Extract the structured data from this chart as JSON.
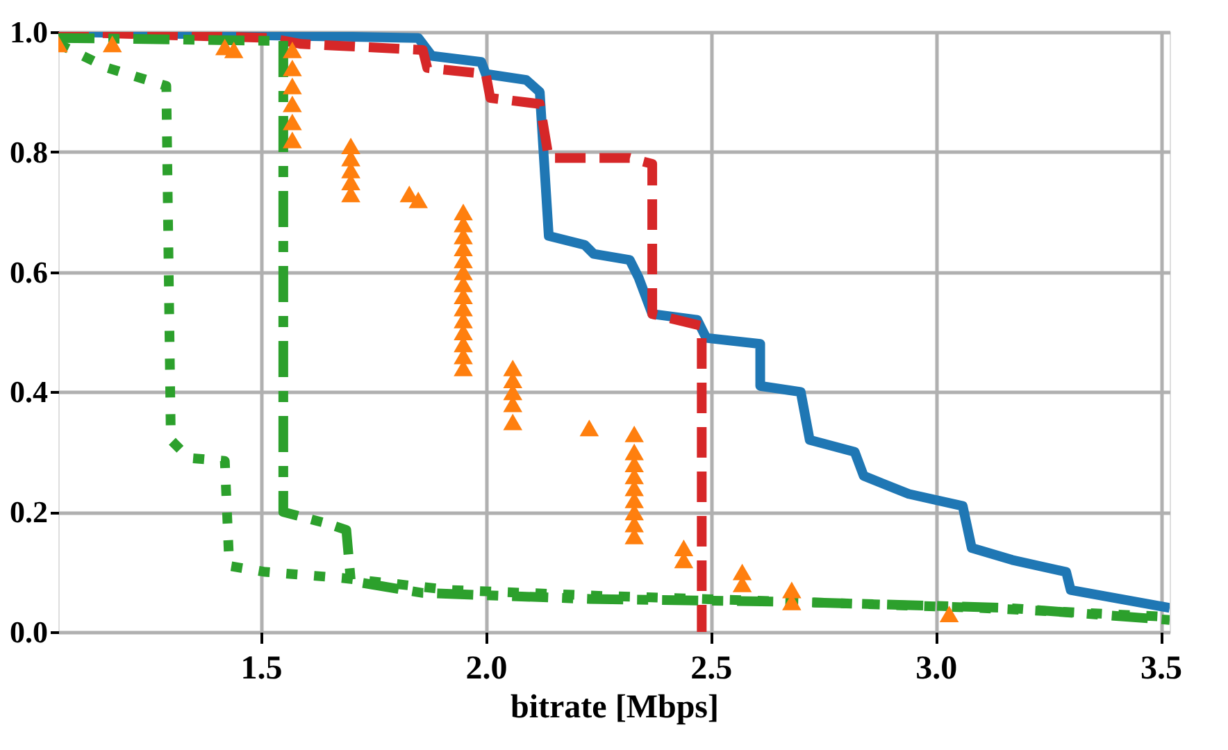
{
  "chart_data": {
    "type": "line",
    "xlabel": "bitrate [Mbps]",
    "xlim": [
      1.05,
      3.52
    ],
    "ylim": [
      0,
      1
    ],
    "xticks": [
      {
        "value": 1.5,
        "label": "1.5"
      },
      {
        "value": 2.0,
        "label": "2.0"
      },
      {
        "value": 2.5,
        "label": "2.5"
      },
      {
        "value": 3.0,
        "label": "3.0"
      },
      {
        "value": 3.5,
        "label": "3.5"
      }
    ],
    "yticks": [
      {
        "value": 0,
        "label": "0.0"
      },
      {
        "value": 0.2,
        "label": "0.2"
      },
      {
        "value": 0.4,
        "label": "0.4"
      },
      {
        "value": 0.6,
        "label": "0.6"
      },
      {
        "value": 0.8,
        "label": "0.8"
      },
      {
        "value": 1.0,
        "label": "1.0"
      }
    ],
    "grid": true,
    "series": [
      {
        "color": "#1f77b4",
        "line_style": "solid",
        "x": [
          1.05,
          1.85,
          1.88,
          1.99,
          2.0,
          2.09,
          2.12,
          2.14,
          2.22,
          2.24,
          2.32,
          2.34,
          2.37,
          2.47,
          2.49,
          2.61,
          2.61,
          2.7,
          2.72,
          2.82,
          2.84,
          2.94,
          3.06,
          3.08,
          3.17,
          3.29,
          3.3,
          3.52
        ],
        "values": [
          1.0,
          0.99,
          0.96,
          0.95,
          0.93,
          0.92,
          0.9,
          0.66,
          0.645,
          0.63,
          0.62,
          0.59,
          0.53,
          0.52,
          0.49,
          0.48,
          0.41,
          0.4,
          0.32,
          0.3,
          0.26,
          0.23,
          0.21,
          0.14,
          0.12,
          0.1,
          0.07,
          0.04
        ]
      },
      {
        "color": "#d62728",
        "line_style": "dashed",
        "x": [
          1.05,
          1.52,
          1.59,
          1.86,
          1.87,
          2.0,
          2.01,
          2.12,
          2.14,
          2.32,
          2.37,
          2.37,
          2.48,
          2.48
        ],
        "values": [
          1.0,
          0.99,
          0.98,
          0.97,
          0.94,
          0.93,
          0.89,
          0.88,
          0.79,
          0.79,
          0.78,
          0.53,
          0.51,
          0.0
        ]
      },
      {
        "color": "#2ca02c",
        "line_style": "dotted",
        "x": [
          1.05,
          1.16,
          1.29,
          1.3,
          1.34,
          1.42,
          1.43,
          1.51,
          1.68,
          1.92,
          2.26,
          2.7,
          3.1,
          3.52
        ],
        "values": [
          0.98,
          0.94,
          0.91,
          0.32,
          0.29,
          0.285,
          0.11,
          0.1,
          0.09,
          0.07,
          0.06,
          0.05,
          0.04,
          0.025
        ]
      },
      {
        "color": "#2ca02c",
        "line_style": "dashdot",
        "x": [
          1.05,
          1.55,
          1.55,
          1.65,
          1.69,
          1.7,
          1.86,
          2.23,
          2.69,
          3.16,
          3.52
        ],
        "values": [
          0.99,
          0.985,
          0.2,
          0.18,
          0.17,
          0.085,
          0.065,
          0.055,
          0.05,
          0.04,
          0.02
        ]
      },
      {
        "type": "scatter",
        "color": "#ff7f0e",
        "marker": "triangle",
        "x": [
          1.05,
          1.17,
          1.42,
          1.44,
          1.57,
          1.57,
          1.57,
          1.57,
          1.57,
          1.57,
          1.7,
          1.7,
          1.7,
          1.7,
          1.7,
          1.83,
          1.85,
          1.95,
          1.95,
          1.95,
          1.95,
          1.95,
          1.95,
          1.95,
          1.95,
          1.95,
          1.95,
          1.95,
          1.95,
          1.95,
          1.95,
          2.06,
          2.06,
          2.06,
          2.06,
          2.06,
          2.23,
          2.33,
          2.33,
          2.33,
          2.33,
          2.33,
          2.33,
          2.33,
          2.33,
          2.33,
          2.44,
          2.44,
          2.57,
          2.57,
          2.68,
          2.68,
          3.03
        ],
        "values": [
          0.98,
          0.98,
          0.975,
          0.97,
          0.82,
          0.85,
          0.88,
          0.91,
          0.94,
          0.97,
          0.73,
          0.75,
          0.77,
          0.79,
          0.81,
          0.73,
          0.72,
          0.44,
          0.46,
          0.48,
          0.5,
          0.52,
          0.54,
          0.56,
          0.58,
          0.6,
          0.62,
          0.64,
          0.66,
          0.68,
          0.7,
          0.35,
          0.38,
          0.4,
          0.42,
          0.44,
          0.34,
          0.16,
          0.18,
          0.2,
          0.22,
          0.24,
          0.26,
          0.28,
          0.3,
          0.33,
          0.12,
          0.14,
          0.08,
          0.1,
          0.05,
          0.07,
          0.03
        ]
      }
    ]
  }
}
